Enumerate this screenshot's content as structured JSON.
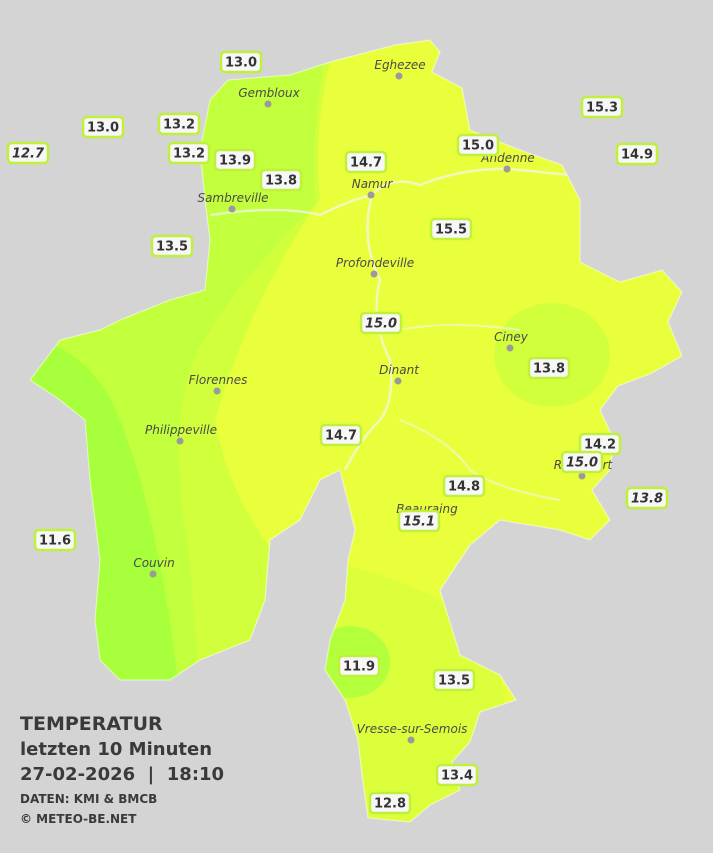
{
  "header": {
    "title": "TEMPERATUR",
    "subtitle": "letzten 10 Minuten",
    "timestamp": "27-02-2026  |  18:10",
    "source": "DATEN: KMI & BMCB",
    "copyright": "© METEO-BE.NET"
  },
  "cities": [
    "Eghezee",
    "Gembloux",
    "Andenne",
    "Namur",
    "Sambreville",
    "Profondeville",
    "Ciney",
    "Dinant",
    "Florennes",
    "Philippeville",
    "Couvin",
    "Vresse-sur-Semois",
    "Rochefort",
    "Beauraing"
  ],
  "stations": [
    {
      "value": "13.0",
      "italic": false
    },
    {
      "value": "13.0",
      "italic": false
    },
    {
      "value": "12.7",
      "italic": true
    },
    {
      "value": "13.2",
      "italic": false
    },
    {
      "value": "13.2",
      "italic": false
    },
    {
      "value": "13.9",
      "italic": false
    },
    {
      "value": "13.8",
      "italic": false
    },
    {
      "value": "14.7",
      "italic": false
    },
    {
      "value": "15.0",
      "italic": false
    },
    {
      "value": "15.3",
      "italic": false
    },
    {
      "value": "14.9",
      "italic": false
    },
    {
      "value": "13.5",
      "italic": false
    },
    {
      "value": "15.5",
      "italic": false
    },
    {
      "value": "15.0",
      "italic": true
    },
    {
      "value": "13.8",
      "italic": false
    },
    {
      "value": "14.7",
      "italic": false
    },
    {
      "value": "14.2",
      "italic": false
    },
    {
      "value": "15.0",
      "italic": true
    },
    {
      "value": "13.8",
      "italic": true
    },
    {
      "value": "14.8",
      "italic": false
    },
    {
      "value": "15.1",
      "italic": true
    },
    {
      "value": "11.6",
      "italic": false
    },
    {
      "value": "11.9",
      "italic": false
    },
    {
      "value": "13.5",
      "italic": false
    },
    {
      "value": "13.4",
      "italic": false
    },
    {
      "value": "12.8",
      "italic": false
    }
  ]
}
